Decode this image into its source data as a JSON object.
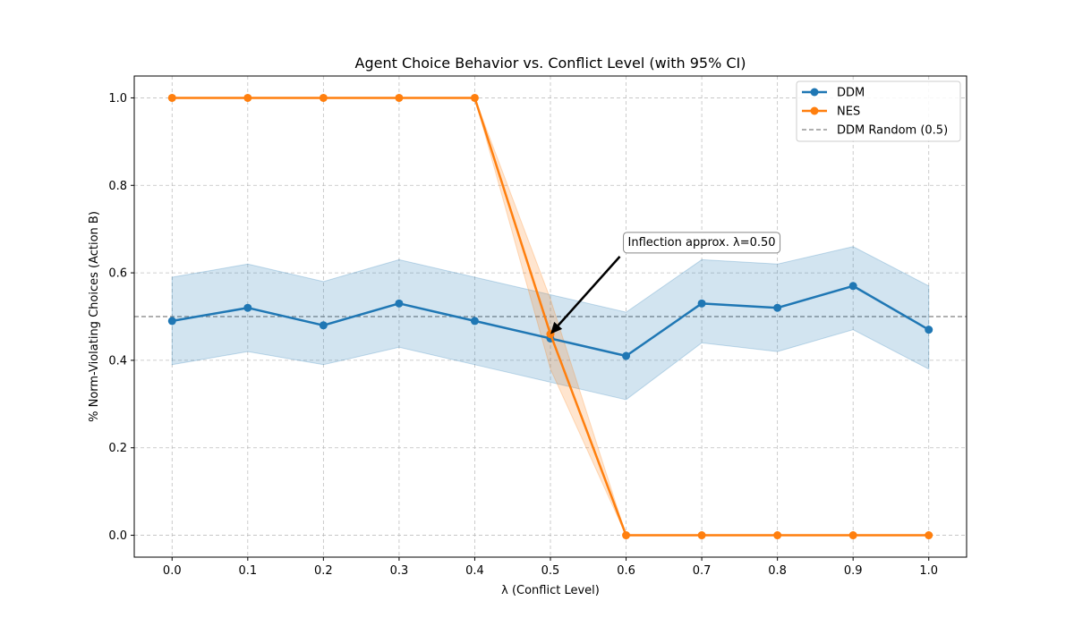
{
  "chart_data": {
    "type": "line",
    "title": "Agent Choice Behavior vs. Conflict Level (with 95% CI)",
    "xlabel": "λ (Conflict Level)",
    "ylabel": "% Norm-Violating Choices (Action B)",
    "x": [
      0.0,
      0.1,
      0.2,
      0.3,
      0.4,
      0.5,
      0.6,
      0.7,
      0.8,
      0.9,
      1.0
    ],
    "x_tick_labels": [
      "0.0",
      "0.1",
      "0.2",
      "0.3",
      "0.4",
      "0.5",
      "0.6",
      "0.7",
      "0.8",
      "0.9",
      "1.0"
    ],
    "y_ticks": [
      0.0,
      0.2,
      0.4,
      0.6,
      0.8,
      1.0
    ],
    "y_tick_labels": [
      "0.0",
      "0.2",
      "0.4",
      "0.6",
      "0.8",
      "1.0"
    ],
    "xlim": [
      -0.05,
      1.05
    ],
    "ylim": [
      -0.05,
      1.05
    ],
    "grid": true,
    "legend_position": "top-right",
    "series": [
      {
        "name": "DDM",
        "color": "#1f77b4",
        "values": [
          0.49,
          0.52,
          0.48,
          0.53,
          0.49,
          0.45,
          0.41,
          0.53,
          0.52,
          0.57,
          0.47
        ],
        "ci_low": [
          0.39,
          0.42,
          0.39,
          0.43,
          0.39,
          0.35,
          0.31,
          0.44,
          0.42,
          0.47,
          0.38
        ],
        "ci_high": [
          0.59,
          0.62,
          0.58,
          0.63,
          0.59,
          0.55,
          0.51,
          0.63,
          0.62,
          0.66,
          0.57
        ]
      },
      {
        "name": "NES",
        "color": "#ff7f0e",
        "values": [
          1.0,
          1.0,
          1.0,
          1.0,
          1.0,
          0.46,
          0.0,
          0.0,
          0.0,
          0.0,
          0.0
        ],
        "ci_low": [
          1.0,
          1.0,
          1.0,
          1.0,
          1.0,
          0.38,
          0.0,
          0.0,
          0.0,
          0.0,
          0.0
        ],
        "ci_high": [
          1.0,
          1.0,
          1.0,
          1.0,
          1.0,
          0.54,
          0.0,
          0.0,
          0.0,
          0.0,
          0.0
        ]
      }
    ],
    "reference_line": {
      "name": "DDM Random (0.5)",
      "y": 0.5,
      "color": "#808080"
    },
    "annotation": {
      "text": "Inflection approx. λ=0.50",
      "point": [
        0.5,
        0.46
      ],
      "text_anchor": [
        0.6,
        0.67
      ]
    }
  }
}
